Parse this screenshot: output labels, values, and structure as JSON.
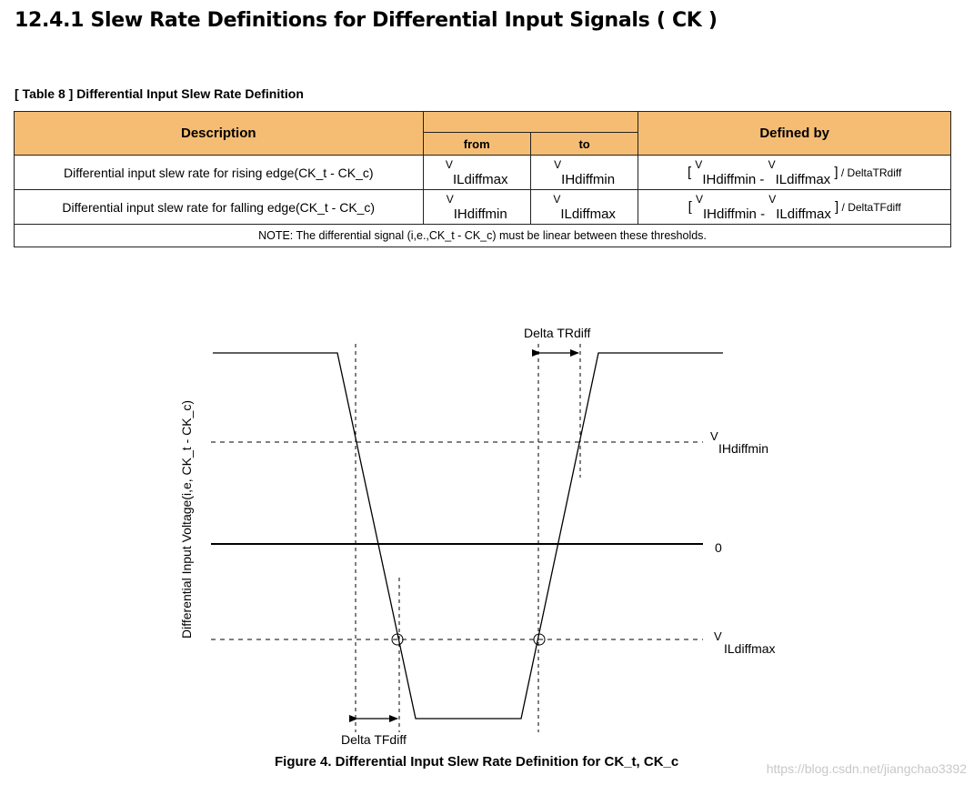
{
  "heading": "12.4.1 Slew Rate Definitions for Differential Input Signals ( CK )",
  "table": {
    "caption": "[ Table 8 ] Differential Input Slew Rate Definition",
    "headers": {
      "description": "Description",
      "measured": "",
      "from": "from",
      "to": "to",
      "defined_by": "Defined by"
    },
    "rows": [
      {
        "description": "Differential input slew rate for rising edge(CK_t - CK_c)",
        "from_v": "V",
        "from_sub": "ILdiffmax",
        "to_v": "V",
        "to_sub": "IHdiffmin",
        "def_open": "[ ",
        "def_v1": "V",
        "def_sub1": "IHdiffmin",
        "def_minus": " - ",
        "def_v2": "V",
        "def_sub2": "ILdiffmax",
        "def_close": " ]",
        "def_div": " / DeltaTRdiff"
      },
      {
        "description": "Differential input slew rate for falling edge(CK_t - CK_c)",
        "from_v": "V",
        "from_sub": "IHdiffmin",
        "to_v": "V",
        "to_sub": "ILdiffmax",
        "def_open": "[ ",
        "def_v1": "V",
        "def_sub1": "IHdiffmin",
        "def_minus": " - ",
        "def_v2": "V",
        "def_sub2": "ILdiffmax",
        "def_close": " ]",
        "def_div": " / DeltaTFdiff"
      }
    ],
    "note": "NOTE: The differential signal (i,e.,CK_t - CK_c) must be linear between these thresholds."
  },
  "figure": {
    "y_axis_label": "Differential Input Voltage(i,e, CK_t - CK_c)",
    "delta_tr_label": "Delta TRdiff",
    "delta_tf_label": "Delta TFdiff",
    "vih_v": "V",
    "vih_sub": "IHdiffmin",
    "zero_label": "0",
    "vil_v": "V",
    "vil_sub": "ILdiffmax",
    "caption": "Figure 4.  Differential Input Slew Rate Definition for CK_t, CK_c"
  },
  "watermark": "https://blog.csdn.net/jiangchao3392"
}
